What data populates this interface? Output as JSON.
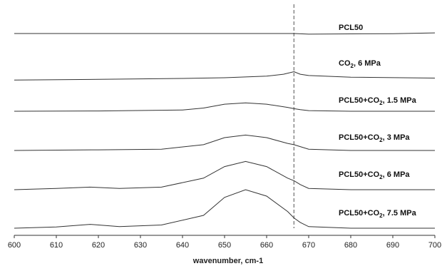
{
  "chart_data": {
    "type": "line",
    "xlabel": "wavenumber, cm-1",
    "ylabel": "",
    "title": "",
    "xlim": [
      600,
      700
    ],
    "x_ticks": [
      600,
      610,
      620,
      630,
      640,
      650,
      660,
      670,
      680,
      690,
      700
    ],
    "grid": false,
    "reference_line": {
      "x": 666.5,
      "style": "dashed"
    },
    "series": [
      {
        "name": "PCL50",
        "label_main": "PCL50",
        "label_sub": "",
        "label_rest": "",
        "x": [
          600,
          620,
          640,
          660,
          666.5,
          670,
          680,
          690,
          700
        ],
        "y": [
          0.0,
          0.0,
          0.0,
          0.0,
          0.0,
          -0.05,
          -0.03,
          -0.01,
          0.05
        ]
      },
      {
        "name": "CO2, 6 MPa",
        "label_main": "CO",
        "label_sub": "2",
        "label_rest": ", 6 MPa",
        "x": [
          600,
          620,
          640,
          650,
          660,
          664,
          666.5,
          668,
          670,
          680,
          700
        ],
        "y": [
          -0.4,
          -0.35,
          -0.28,
          -0.22,
          -0.1,
          0.05,
          0.25,
          0.05,
          -0.05,
          -0.18,
          -0.25
        ]
      },
      {
        "name": "PCL50+CO2, 1.5 MPa",
        "label_main": "PCL50+CO",
        "label_sub": "2",
        "label_rest": ", 1.5 MPa",
        "x": [
          600,
          620,
          640,
          645,
          650,
          655,
          660,
          665,
          666.5,
          668,
          670,
          680,
          700
        ],
        "y": [
          0.0,
          0.02,
          0.1,
          0.25,
          0.55,
          0.65,
          0.55,
          0.3,
          0.2,
          0.12,
          0.05,
          0.0,
          0.0
        ]
      },
      {
        "name": "PCL50+CO2, 3 MPa",
        "label_main": "PCL50+CO",
        "label_sub": "2",
        "label_rest": ", 3 MPa",
        "x": [
          600,
          620,
          635,
          645,
          650,
          655,
          660,
          665,
          666.5,
          668,
          670,
          680,
          700
        ],
        "y": [
          0.0,
          0.05,
          0.1,
          0.45,
          1.0,
          1.2,
          1.0,
          0.55,
          0.45,
          0.3,
          0.1,
          0.0,
          0.0
        ]
      },
      {
        "name": "PCL50+CO2, 6 MPa",
        "label_main": "PCL50+CO",
        "label_sub": "2",
        "label_rest": ", 6 MPa",
        "x": [
          600,
          610,
          618,
          625,
          635,
          645,
          650,
          655,
          660,
          665,
          666.5,
          668,
          670,
          680,
          700
        ],
        "y": [
          0.0,
          0.1,
          0.2,
          0.1,
          0.2,
          0.9,
          1.8,
          2.2,
          1.8,
          0.9,
          0.7,
          0.4,
          0.1,
          0.0,
          0.0
        ]
      },
      {
        "name": "PCL50+CO2, 7.5 MPa",
        "label_main": "PCL50+CO",
        "label_sub": "2",
        "label_rest": ", 7.5 MPa",
        "x": [
          600,
          610,
          618,
          625,
          635,
          645,
          650,
          655,
          660,
          665,
          666.5,
          668,
          670,
          680,
          700
        ],
        "y": [
          0.0,
          0.1,
          0.3,
          0.12,
          0.25,
          1.0,
          2.4,
          3.0,
          2.5,
          1.3,
          0.8,
          0.45,
          0.12,
          0.0,
          0.0
        ]
      }
    ]
  }
}
